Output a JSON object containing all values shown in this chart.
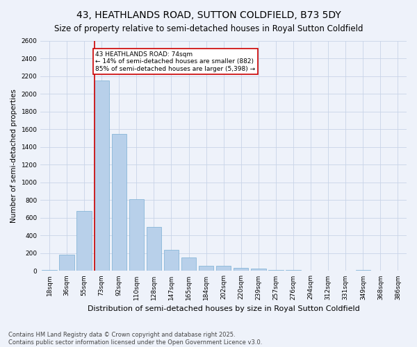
{
  "title": "43, HEATHLANDS ROAD, SUTTON COLDFIELD, B73 5DY",
  "subtitle": "Size of property relative to semi-detached houses in Royal Sutton Coldfield",
  "xlabel": "Distribution of semi-detached houses by size in Royal Sutton Coldfield",
  "ylabel": "Number of semi-detached properties",
  "categories": [
    "18sqm",
    "36sqm",
    "55sqm",
    "73sqm",
    "92sqm",
    "110sqm",
    "128sqm",
    "147sqm",
    "165sqm",
    "184sqm",
    "202sqm",
    "220sqm",
    "239sqm",
    "257sqm",
    "276sqm",
    "294sqm",
    "312sqm",
    "331sqm",
    "349sqm",
    "368sqm",
    "386sqm"
  ],
  "values": [
    10,
    180,
    680,
    2150,
    1550,
    810,
    500,
    240,
    150,
    55,
    55,
    35,
    30,
    10,
    10,
    5,
    0,
    0,
    10,
    0,
    0
  ],
  "bar_color": "#b8d0ea",
  "bar_edge_color": "#7aafd4",
  "highlight_index": 3,
  "highlight_line_color": "#cc0000",
  "annotation_text": "43 HEATHLANDS ROAD: 74sqm\n← 14% of semi-detached houses are smaller (882)\n85% of semi-detached houses are larger (5,398) →",
  "annotation_box_color": "#ffffff",
  "annotation_box_edge_color": "#cc0000",
  "ylim": [
    0,
    2600
  ],
  "yticks": [
    0,
    200,
    400,
    600,
    800,
    1000,
    1200,
    1400,
    1600,
    1800,
    2000,
    2200,
    2400,
    2600
  ],
  "footnote": "Contains HM Land Registry data © Crown copyright and database right 2025.\nContains public sector information licensed under the Open Government Licence v3.0.",
  "background_color": "#eef2fa",
  "grid_color": "#c8d4e8",
  "title_fontsize": 10,
  "subtitle_fontsize": 8.5,
  "tick_fontsize": 6.5,
  "ylabel_fontsize": 7.5,
  "xlabel_fontsize": 8,
  "footnote_fontsize": 6
}
